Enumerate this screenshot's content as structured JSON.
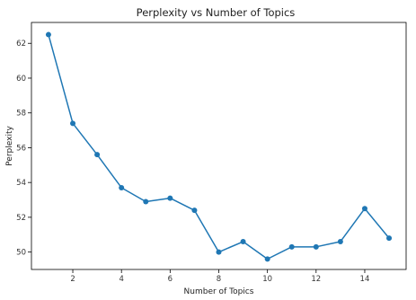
{
  "chart_data": {
    "type": "line",
    "title": "Perplexity vs Number of Topics",
    "xlabel": "Number of Topics",
    "ylabel": "Perplexity",
    "x": [
      1,
      2,
      3,
      4,
      5,
      6,
      7,
      8,
      9,
      10,
      11,
      12,
      13,
      14,
      15
    ],
    "series": [
      {
        "values": [
          62.5,
          57.4,
          55.6,
          53.7,
          52.9,
          53.1,
          52.4,
          50.0,
          50.6,
          49.6,
          50.3,
          50.3,
          50.6,
          52.5,
          50.8
        ],
        "color": "#1f77b4",
        "marker": "circle"
      }
    ],
    "xticks": [
      2,
      4,
      6,
      8,
      10,
      12,
      14
    ],
    "yticks": [
      50,
      52,
      54,
      56,
      58,
      60,
      62
    ],
    "xlim": [
      0.3,
      15.7
    ],
    "ylim": [
      49.0,
      63.2
    ],
    "grid": false,
    "legend": "none"
  }
}
